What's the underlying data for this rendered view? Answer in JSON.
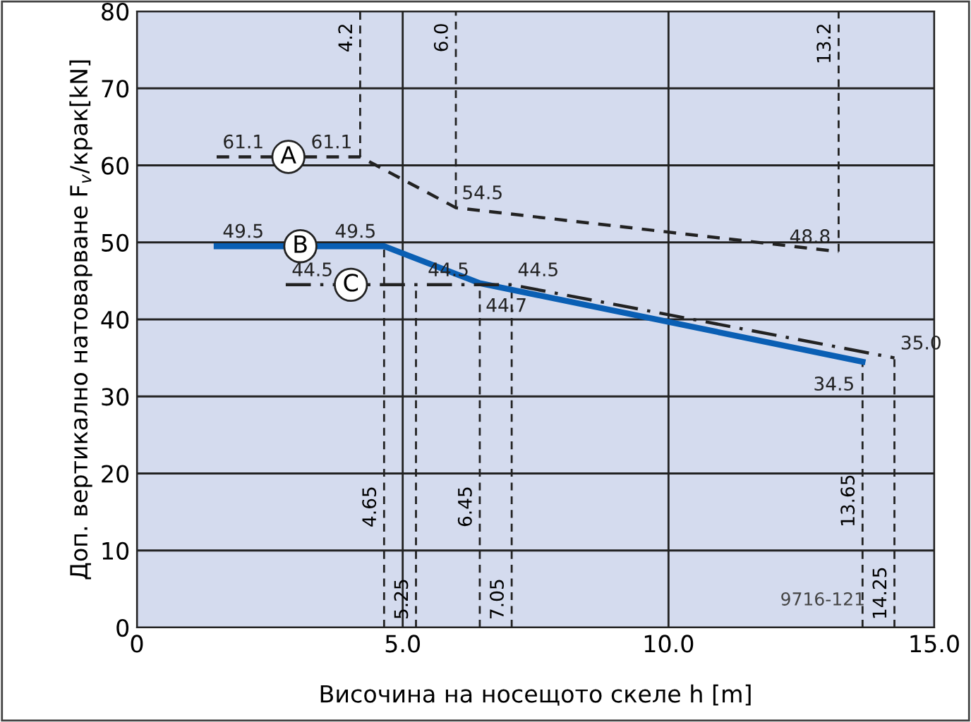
{
  "chart_data": {
    "type": "line",
    "xlabel": "Височина на носещото скеле h [m]",
    "ylabel": "Доп. вертикално натоварване F$_{v}$/крак[kN]",
    "series": [
      {
        "name": "A",
        "color": "#222222",
        "line_style": "dashed",
        "x": [
          1.5,
          4.2,
          6.0,
          13.2
        ],
        "values": [
          61.1,
          61.1,
          54.5,
          48.8
        ],
        "value_labels": [
          "61.1",
          "61.1",
          "54.5",
          "48.8"
        ]
      },
      {
        "name": "B",
        "color": "#0a5fb4",
        "line_style": "solid",
        "x": [
          1.5,
          4.65,
          6.45,
          13.65
        ],
        "values": [
          49.5,
          49.5,
          44.7,
          34.5
        ],
        "value_labels": [
          "49.5",
          "49.5",
          "44.7",
          "34.5"
        ]
      },
      {
        "name": "C",
        "color": "#222222",
        "line_style": "dashdot",
        "x": [
          2.8,
          5.25,
          7.05,
          14.25
        ],
        "values": [
          44.5,
          44.5,
          44.5,
          35.0
        ],
        "value_labels": [
          "44.5",
          "44.5",
          "44.5",
          "35.0"
        ]
      }
    ],
    "xlim": [
      0,
      15
    ],
    "ylim": [
      0,
      80
    ],
    "xticks": [
      0,
      {
        "value": 5,
        "label": "5.0"
      },
      {
        "value": 10,
        "label": "10.0"
      },
      {
        "value": 15,
        "label": "15.0"
      }
    ],
    "yticks": [
      0,
      10,
      20,
      30,
      40,
      50,
      60,
      70,
      80
    ],
    "grid": true,
    "ref_lines": [
      {
        "axis": "x",
        "value": 4.2,
        "label": "4.2",
        "line_style": "dashed"
      },
      {
        "axis": "x",
        "value": 6.0,
        "label": "6.0",
        "line_style": "dashed"
      },
      {
        "axis": "x",
        "value": 13.2,
        "label": "13.2",
        "line_style": "dashed"
      },
      {
        "axis": "x",
        "value": 4.65,
        "label": "4.65",
        "line_style": "dashed"
      },
      {
        "axis": "x",
        "value": 5.25,
        "label": "5.25",
        "line_style": "dashed"
      },
      {
        "axis": "x",
        "value": 6.45,
        "label": "6.45",
        "line_style": "dashed"
      },
      {
        "axis": "x",
        "value": 7.05,
        "label": "7.05",
        "line_style": "dashed"
      },
      {
        "axis": "x",
        "value": 13.65,
        "label": "13.65",
        "line_style": "dashed"
      },
      {
        "axis": "x",
        "value": 14.25,
        "label": "14.25",
        "line_style": "dashed"
      }
    ],
    "annotations": [
      "9716-121"
    ]
  }
}
